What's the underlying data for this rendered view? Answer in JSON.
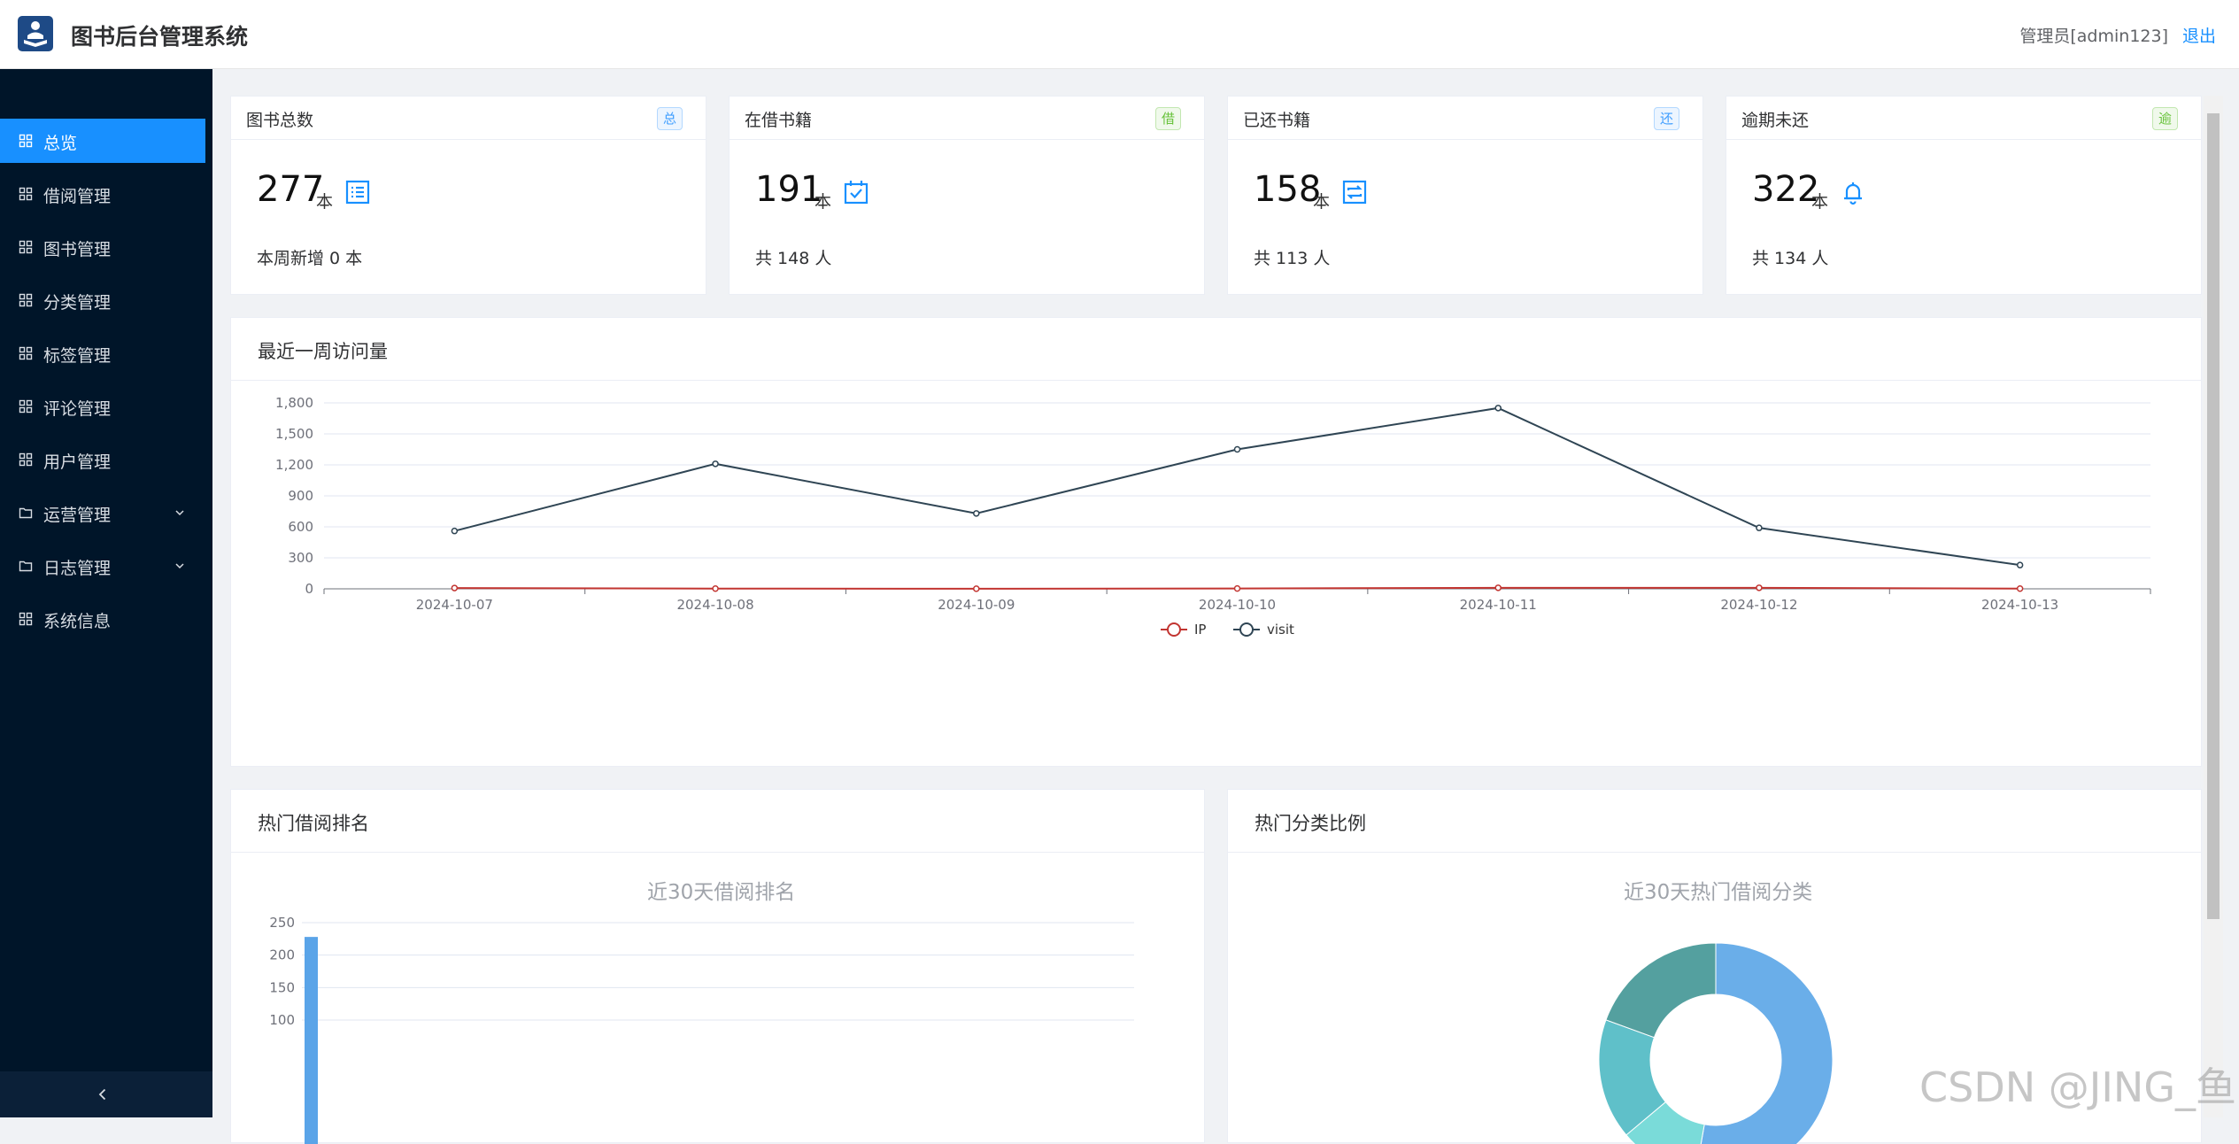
{
  "header": {
    "app_title": "图书后台管理系统",
    "user_label": "管理员[admin123]",
    "logout_label": "退出"
  },
  "sidebar": {
    "items": [
      {
        "label": "总览",
        "icon": "grid-icon",
        "active": true
      },
      {
        "label": "借阅管理",
        "icon": "grid-icon"
      },
      {
        "label": "图书管理",
        "icon": "grid-icon"
      },
      {
        "label": "分类管理",
        "icon": "grid-icon"
      },
      {
        "label": "标签管理",
        "icon": "grid-icon"
      },
      {
        "label": "评论管理",
        "icon": "grid-icon"
      },
      {
        "label": "用户管理",
        "icon": "grid-icon"
      },
      {
        "label": "运营管理",
        "icon": "folder-icon",
        "expandable": true
      },
      {
        "label": "日志管理",
        "icon": "folder-icon",
        "expandable": true
      },
      {
        "label": "系统信息",
        "icon": "grid-icon"
      }
    ],
    "collapse_icon": "chevron-left-icon"
  },
  "stats": [
    {
      "title": "图书总数",
      "tag": "总",
      "tag_color": "#409eff",
      "value": "277",
      "unit": "本",
      "icon": "list-icon",
      "sub": "本周新增 0 本"
    },
    {
      "title": "在借书籍",
      "tag": "借",
      "tag_color": "#67c23a",
      "value": "191",
      "unit": "本",
      "icon": "calendar-check-icon",
      "sub": "共 148 人"
    },
    {
      "title": "已还书籍",
      "tag": "还",
      "tag_color": "#409eff",
      "value": "158",
      "unit": "本",
      "icon": "return-icon",
      "sub": "共 113 人"
    },
    {
      "title": "逾期未还",
      "tag": "逾",
      "tag_color": "#67c23a",
      "value": "322",
      "unit": "本",
      "icon": "bell-icon",
      "sub": "共 134 人"
    }
  ],
  "visits_panel": {
    "title": "最近一周访问量"
  },
  "borrow_rank_panel": {
    "title": "热门借阅排名",
    "chart_title": "近30天借阅排名"
  },
  "category_panel": {
    "title": "热门分类比例",
    "chart_title": "近30天热门借阅分类"
  },
  "watermark": "CSDN @JING_鱼",
  "chart_data": [
    {
      "type": "line",
      "x": [
        "2024-10-07",
        "2024-10-08",
        "2024-10-09",
        "2024-10-10",
        "2024-10-11",
        "2024-10-12",
        "2024-10-13"
      ],
      "series": [
        {
          "name": "IP",
          "color": "#c23531",
          "values": [
            8,
            2,
            1,
            3,
            10,
            10,
            2
          ]
        },
        {
          "name": "visit",
          "color": "#2f4554",
          "values": [
            560,
            1210,
            730,
            1350,
            1750,
            590,
            230
          ]
        }
      ],
      "ylim": [
        0,
        1800
      ],
      "yticks": [
        "0",
        "300",
        "600",
        "900",
        "1,200",
        "1,500",
        "1,800"
      ],
      "grid": true,
      "legend": "bottom-center"
    },
    {
      "type": "bar",
      "title": "近30天借阅排名",
      "series": [
        {
          "values": [
            228
          ],
          "color": "#5aa4e8"
        }
      ],
      "yticks_visible": [
        "100",
        "150",
        "200",
        "250"
      ],
      "ylim": [
        100,
        250
      ]
    },
    {
      "type": "pie",
      "title": "近30天热门借阅分类",
      "donut": true,
      "colors": [
        "#6aaee9",
        "#7adbd9",
        "#5fc0c9",
        "#54a09f"
      ]
    }
  ]
}
